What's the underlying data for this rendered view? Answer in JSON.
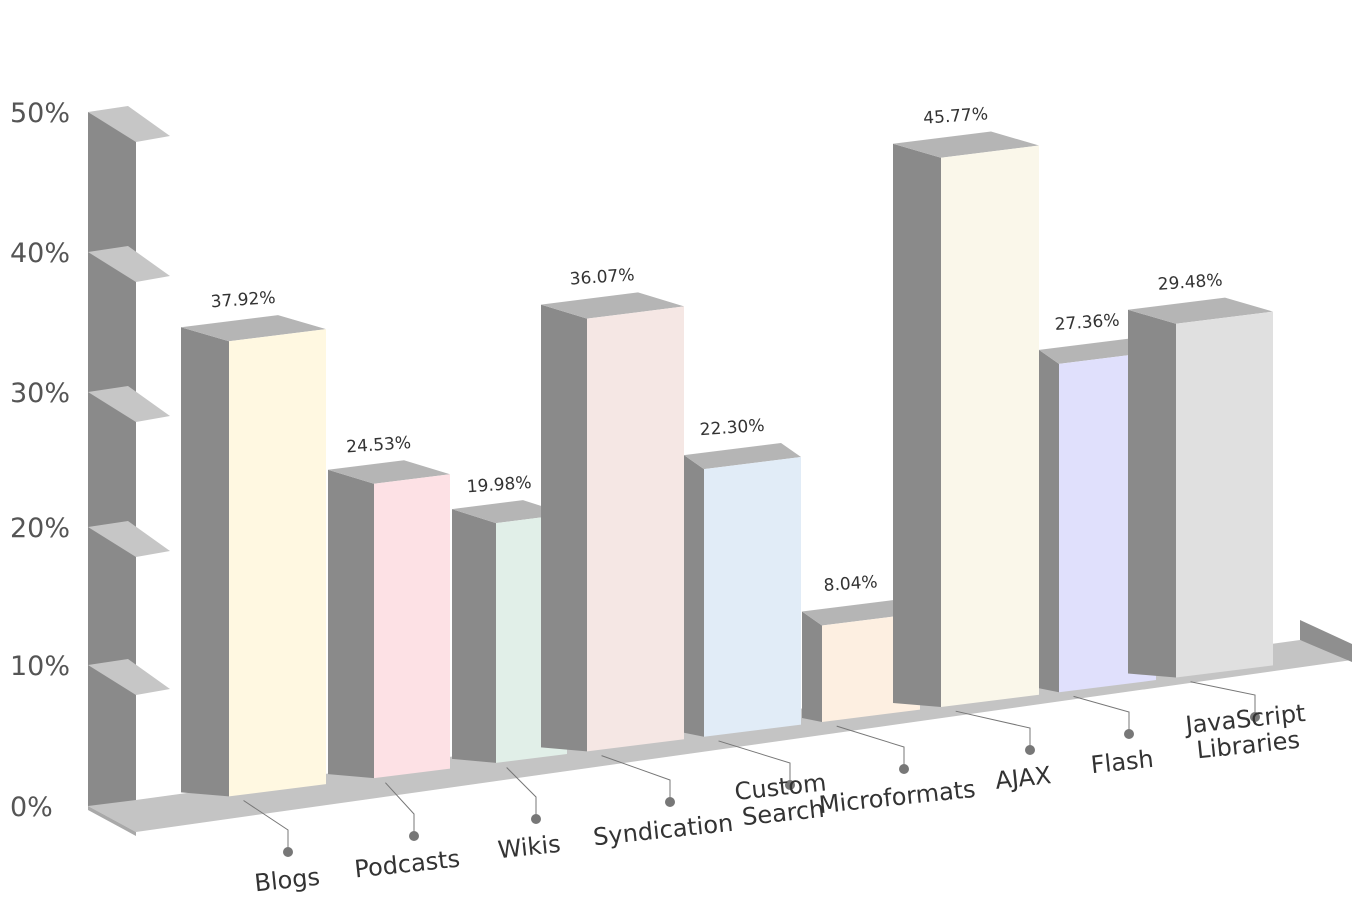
{
  "chart_data": {
    "type": "bar",
    "categories": [
      "Blogs",
      "Podcasts",
      "Wikis",
      "Syndication",
      "Custom Search",
      "Microformats",
      "AJAX",
      "Flash",
      "JavaScript Libraries"
    ],
    "category_lines": [
      [
        "Blogs"
      ],
      [
        "Podcasts"
      ],
      [
        "Wikis"
      ],
      [
        "Syndication"
      ],
      [
        "Custom",
        "Search"
      ],
      [
        "Microformats"
      ],
      [
        "AJAX"
      ],
      [
        "Flash"
      ],
      [
        "JavaScript",
        "Libraries"
      ]
    ],
    "values": [
      37.92,
      24.53,
      19.98,
      36.07,
      22.3,
      8.04,
      45.77,
      27.36,
      29.48
    ],
    "data_labels": [
      "37.92%",
      "24.53%",
      "19.98%",
      "36.07%",
      "22.30%",
      "8.04%",
      "45.77%",
      "27.36%",
      "29.48%"
    ],
    "yticks": [
      "0%",
      "10%",
      "20%",
      "30%",
      "40%",
      "50%"
    ],
    "ylim": [
      0,
      50
    ],
    "colors": [
      "#fff8e1",
      "#fde1e5",
      "#e1efe8",
      "#f5e7e4",
      "#e1ecf7",
      "#fdefe1",
      "#faf7ea",
      "#e0e0fc",
      "#e0e0e0"
    ],
    "grid": false,
    "legend": "none",
    "title": "",
    "xlabel": "",
    "ylabel": ""
  }
}
